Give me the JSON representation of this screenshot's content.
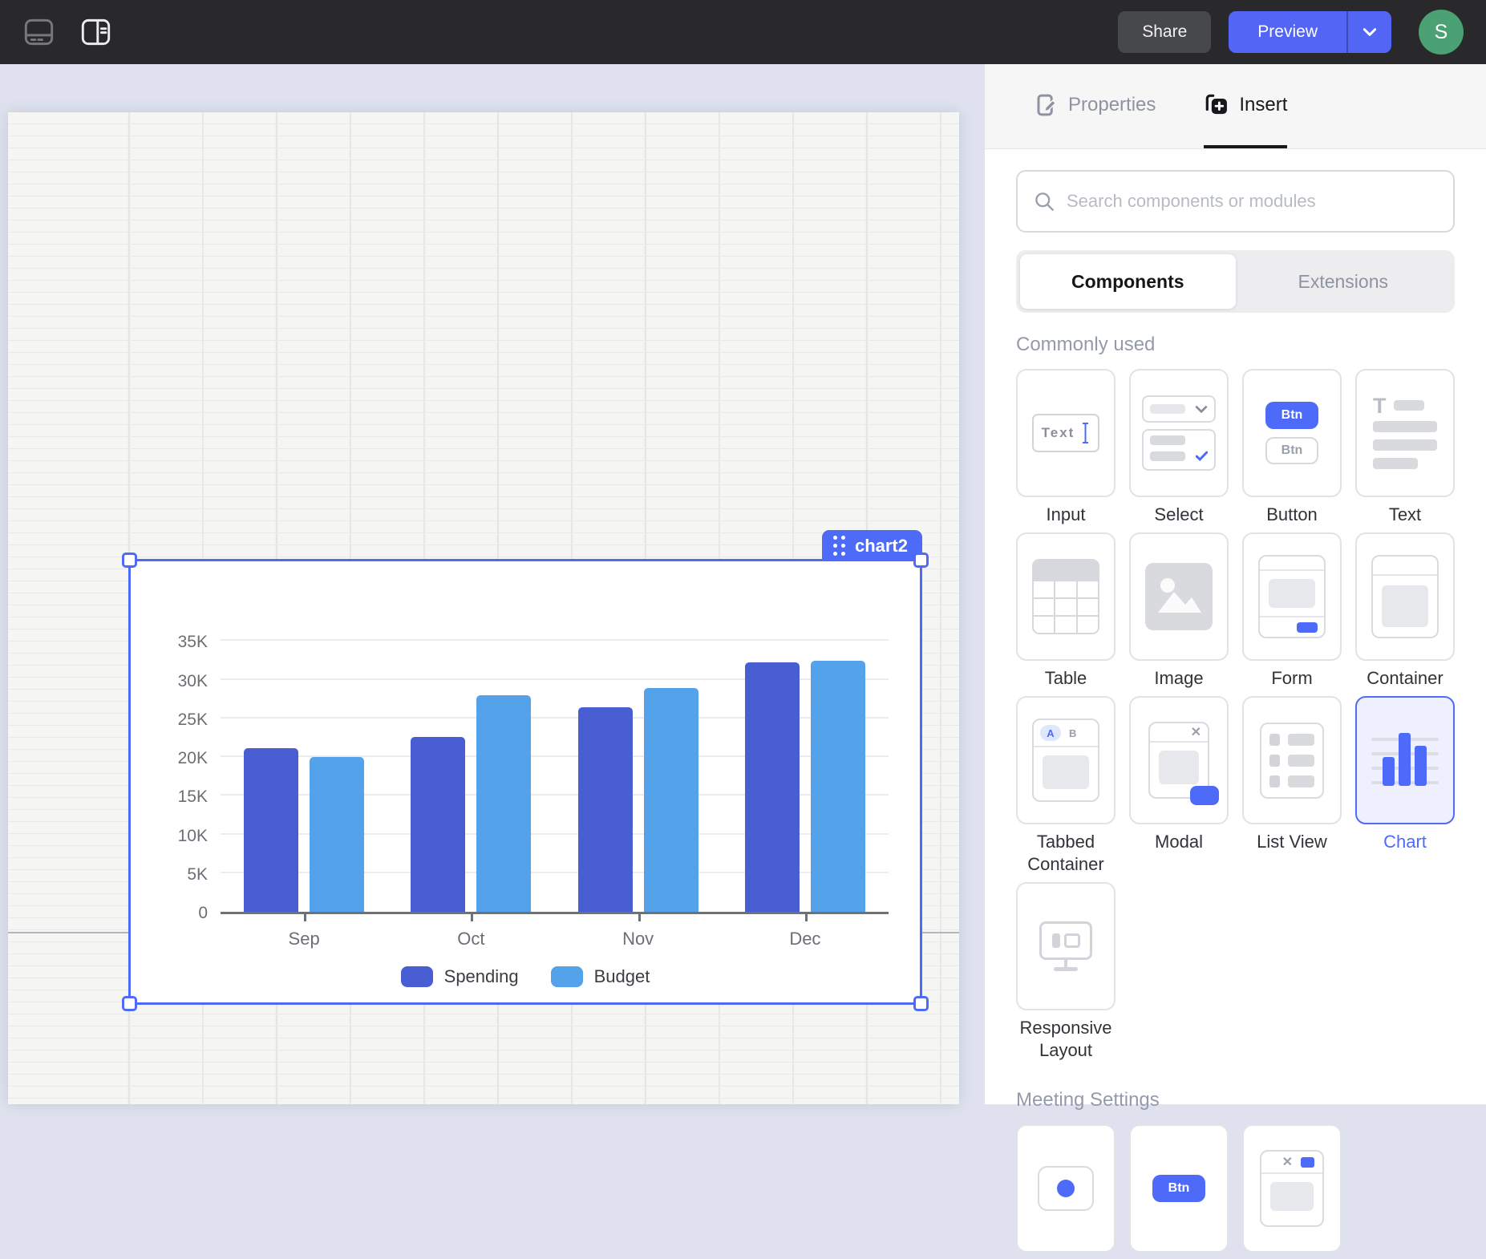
{
  "colors": {
    "accent": "#4d6bf8",
    "preview": "#5265f4",
    "avatar_bg": "#4ba173",
    "spending": "#4a5ed4",
    "budget": "#54a2e9"
  },
  "header": {
    "share_label": "Share",
    "preview_label": "Preview",
    "avatar_initial": "S"
  },
  "canvas": {
    "component_tag": "chart2"
  },
  "chart_data": {
    "type": "bar",
    "title": "",
    "categories": [
      "Sep",
      "Oct",
      "Nov",
      "Dec"
    ],
    "series": [
      {
        "name": "Spending",
        "color": "#4a5ed4",
        "values": [
          21.1,
          22.6,
          26.4,
          32.2
        ]
      },
      {
        "name": "Budget",
        "color": "#54a2e9",
        "values": [
          20.0,
          28.0,
          28.9,
          32.4
        ]
      }
    ],
    "unit": "K",
    "ylim": [
      0,
      36.3
    ],
    "y_ticks": [
      {
        "v": 0,
        "label": "0"
      },
      {
        "v": 5,
        "label": "5K"
      },
      {
        "v": 10,
        "label": "10K"
      },
      {
        "v": 15,
        "label": "15K"
      },
      {
        "v": 20,
        "label": "20K"
      },
      {
        "v": 25,
        "label": "25K"
      },
      {
        "v": 30,
        "label": "30K"
      },
      {
        "v": 35,
        "label": "35K"
      }
    ],
    "grid": true,
    "legend_position": "bottom"
  },
  "panel": {
    "tabs": [
      {
        "label": "Properties",
        "active": false
      },
      {
        "label": "Insert",
        "active": true
      }
    ],
    "search_placeholder": "Search components or modules",
    "segmented": {
      "options": [
        "Components",
        "Extensions"
      ],
      "selected": "Components"
    },
    "sections": [
      {
        "title": "Commonly used",
        "items": [
          {
            "label": "Input",
            "icon": "input-icon"
          },
          {
            "label": "Select",
            "icon": "select-icon"
          },
          {
            "label": "Button",
            "icon": "button-icon"
          },
          {
            "label": "Text",
            "icon": "text-icon"
          },
          {
            "label": "Table",
            "icon": "table-icon"
          },
          {
            "label": "Image",
            "icon": "image-icon"
          },
          {
            "label": "Form",
            "icon": "form-icon"
          },
          {
            "label": "Container",
            "icon": "container-icon"
          },
          {
            "label": "Tabbed Container",
            "icon": "tabbed-container-icon"
          },
          {
            "label": "Modal",
            "icon": "modal-icon"
          },
          {
            "label": "List View",
            "icon": "list-view-icon"
          },
          {
            "label": "Chart",
            "icon": "chart-icon",
            "selected": true
          },
          {
            "label": "Responsive Layout",
            "icon": "responsive-layout-icon"
          }
        ]
      },
      {
        "title": "Meeting Settings",
        "items": [
          {
            "icon": "round-component-icon"
          },
          {
            "icon": "button-component-icon"
          },
          {
            "icon": "modal-component-icon"
          }
        ]
      }
    ]
  },
  "icon_text": {
    "input_sample": "Text",
    "btn": "Btn",
    "tab_a": "A",
    "tab_b": "B",
    "text_t": "T",
    "close": "✕"
  }
}
